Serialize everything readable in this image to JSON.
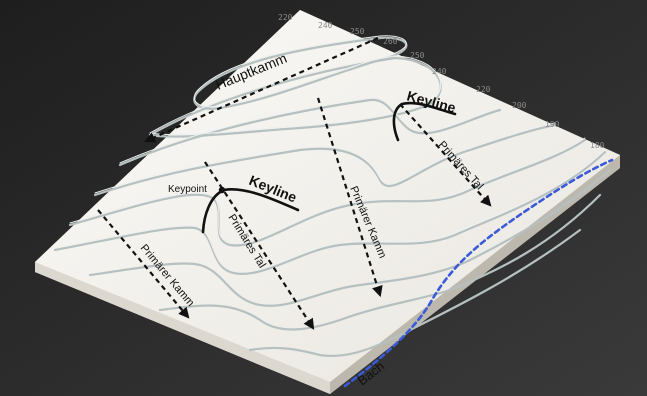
{
  "labels": {
    "hauptkamm": "Hauptkamm",
    "keyline_top": "Keyline",
    "keyline_mid": "Keyline",
    "keypoint": "Keypoint",
    "primaerer_kamm_left": "Primärer Kamm",
    "primaeres_tal_left": "Primäres Tal",
    "primaerer_kamm_center": "Primärer Kamm",
    "primaeres_tal_right": "Primäres Tal",
    "bach": "Bach"
  },
  "elevations": [
    "220",
    "240",
    "250",
    "260",
    "250",
    "240",
    "220",
    "200",
    "190",
    "180"
  ],
  "colors": {
    "background": "#2a2a2a",
    "model_top": "#f3f1ec",
    "contour_shadow": "#b9c3c4",
    "arrow_line": "#111111",
    "keyline": "#111111",
    "stream": "#3a5ad8"
  }
}
